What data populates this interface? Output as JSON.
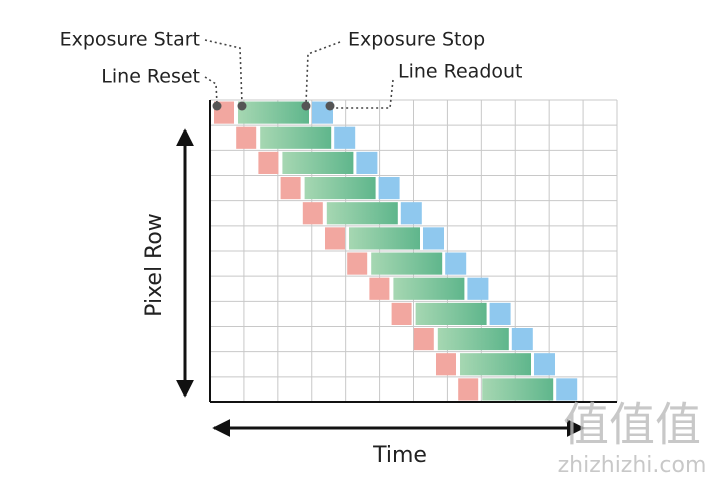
{
  "annotations": {
    "exposure_start": "Exposure Start",
    "exposure_stop": "Exposure Stop",
    "line_reset": "Line Reset",
    "line_readout": "Line Readout"
  },
  "axes": {
    "y_label": "Pixel Row",
    "x_label": "Time"
  },
  "watermark": {
    "logo": "值值值",
    "site": "zhizhizhi.com"
  }
}
